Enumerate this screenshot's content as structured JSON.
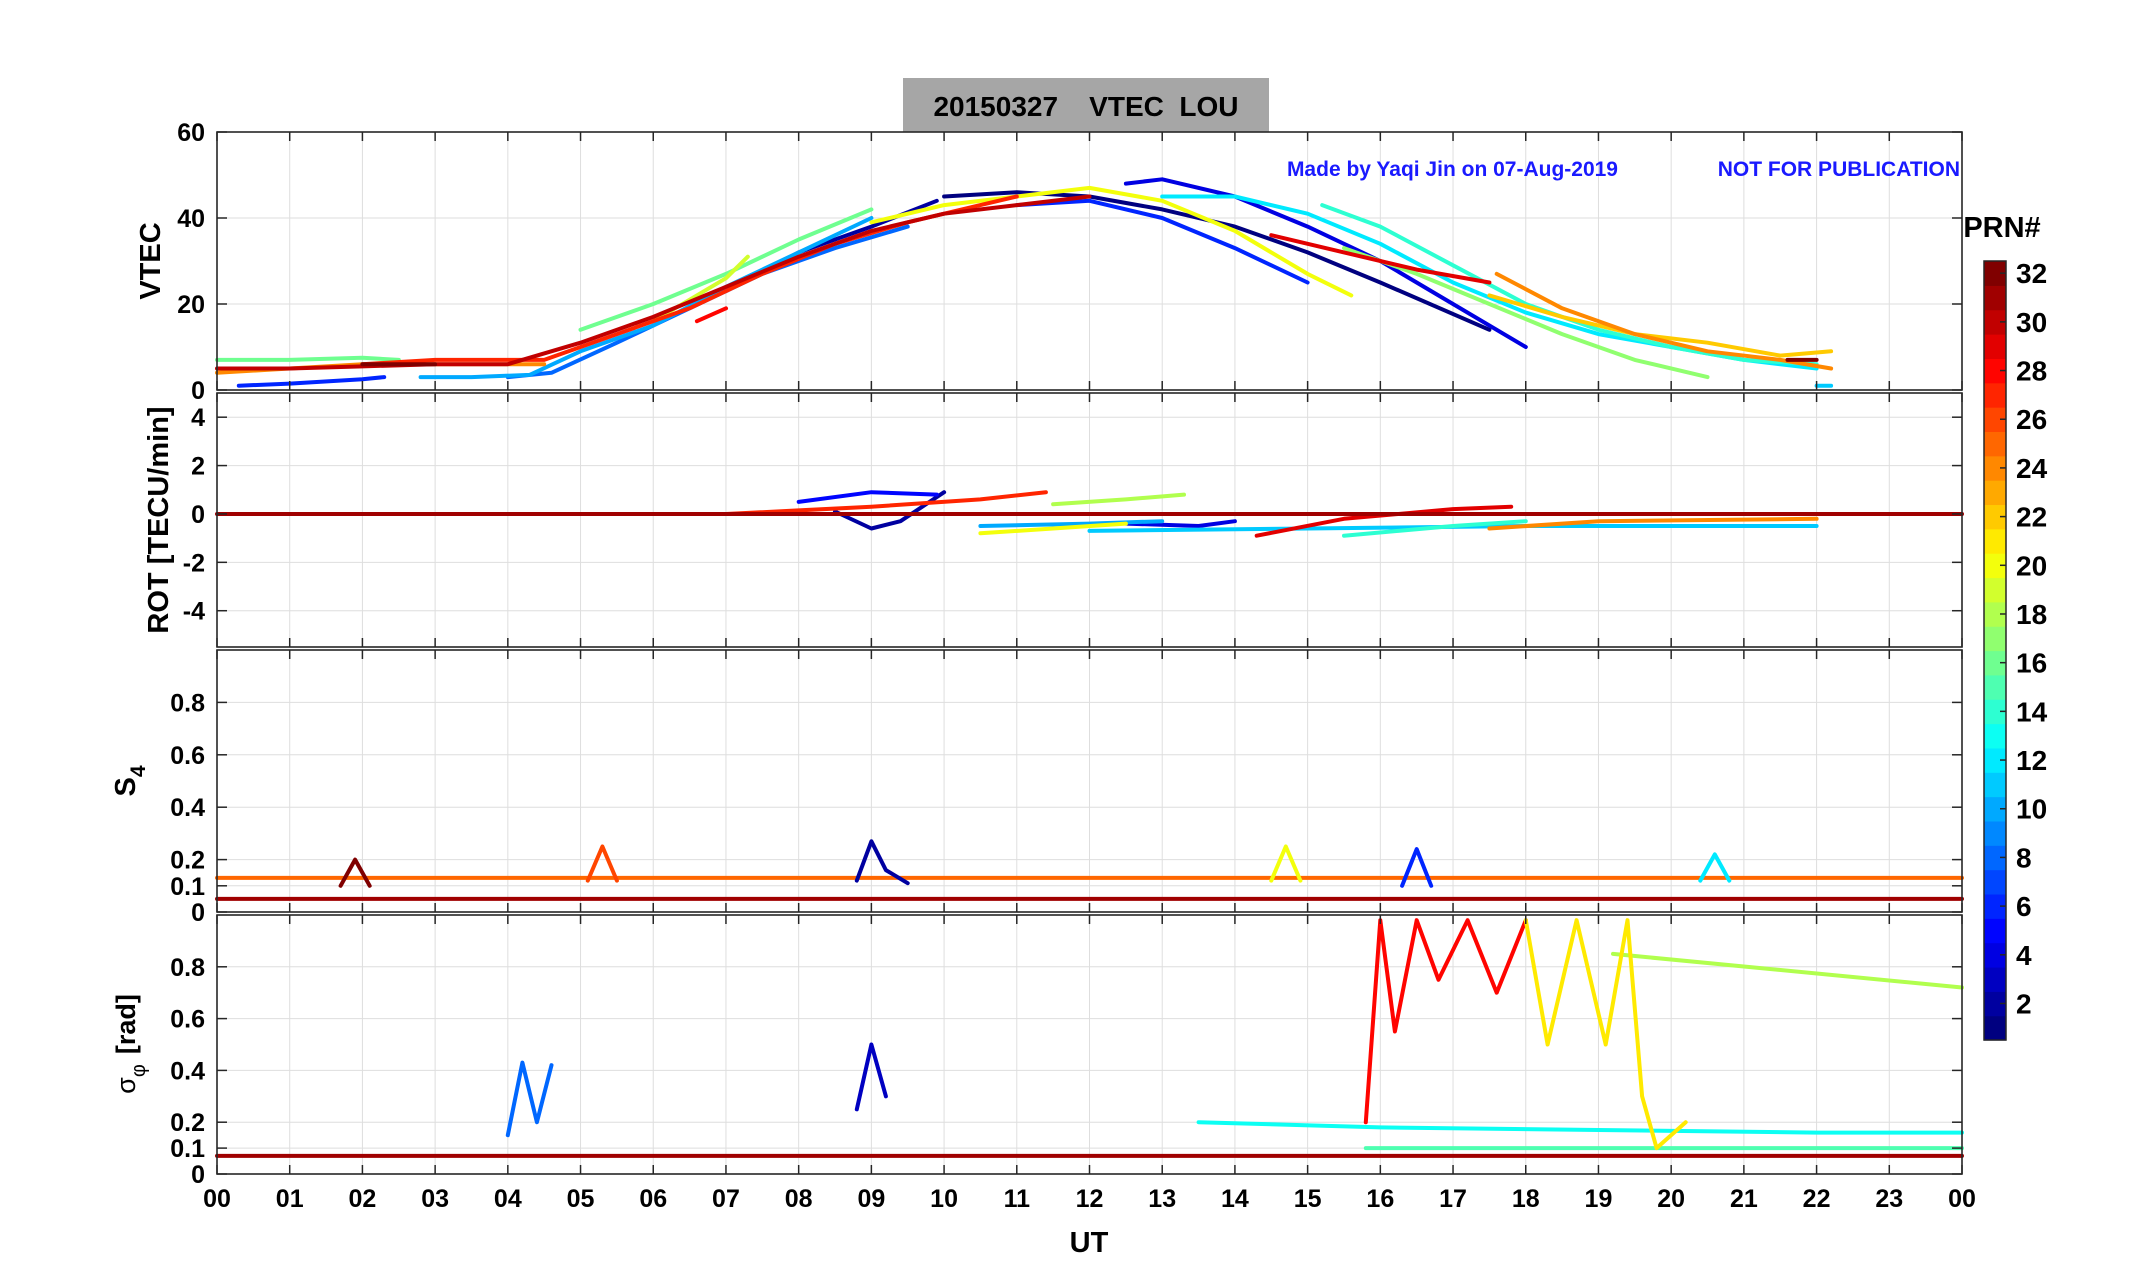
{
  "figure": {
    "title": "20150327    VTEC  LOU",
    "credit": "Made by Yaqi Jin on 07-Aug-2019",
    "notice": "NOT FOR PUBLICATION",
    "xlabel": "UT"
  },
  "colors": {
    "title_box": "#a6a6a6",
    "annotation": "#1a1aff",
    "grid": "#dedede",
    "axis": "#262626"
  },
  "colorbar": {
    "label": "PRN#",
    "range": [
      1,
      32
    ],
    "ticks": [
      "2",
      "4",
      "6",
      "8",
      "10",
      "12",
      "14",
      "16",
      "18",
      "20",
      "22",
      "24",
      "26",
      "28",
      "30",
      "32"
    ]
  },
  "chart_data": [
    {
      "id": "vtec",
      "type": "line",
      "ylabel": "VTEC",
      "xlim": [
        0,
        24
      ],
      "ylim": [
        0,
        60
      ],
      "yticks": [
        "0",
        "20",
        "40",
        "60"
      ],
      "xticks": [
        "00",
        "01",
        "02",
        "03",
        "04",
        "05",
        "06",
        "07",
        "08",
        "09",
        "10",
        "11",
        "12",
        "13",
        "14",
        "15",
        "16",
        "17",
        "18",
        "19",
        "20",
        "21",
        "22",
        "23",
        "00"
      ],
      "series": [
        {
          "prn": 1,
          "x": [
            10.0,
            11.0,
            12.0,
            13.0,
            14.0,
            15.0,
            16.0,
            17.5
          ],
          "y": [
            45,
            46,
            45,
            42,
            38,
            32,
            25,
            14
          ]
        },
        {
          "prn": 2,
          "x": [
            7.0,
            8.0,
            9.0,
            9.9
          ],
          "y": [
            23,
            32,
            38,
            44
          ]
        },
        {
          "prn": 4,
          "x": [
            12.5,
            13.0,
            14.0,
            15.0,
            16.0,
            17.0,
            18.0
          ],
          "y": [
            48,
            49,
            45,
            38,
            30,
            20,
            10
          ]
        },
        {
          "prn": 6,
          "x": [
            0.3,
            1.0,
            2.0,
            2.3
          ],
          "y": [
            1,
            1.5,
            2.5,
            3
          ]
        },
        {
          "prn": 6,
          "x": [
            11.0,
            12.0,
            13.0,
            14.0,
            15.0
          ],
          "y": [
            43,
            44,
            40,
            33,
            25
          ]
        },
        {
          "prn": 8,
          "x": [
            4.0,
            4.6,
            5.5,
            6.5,
            7.5,
            8.5,
            9.5
          ],
          "y": [
            3,
            4,
            11,
            19,
            27,
            33,
            38
          ]
        },
        {
          "prn": 10,
          "x": [
            2.8,
            3.5,
            4.3,
            5.0,
            6.0,
            7.0,
            8.0,
            9.0
          ],
          "y": [
            3,
            3,
            3.5,
            9,
            15,
            24,
            32,
            40
          ]
        },
        {
          "prn": 11,
          "x": [
            22.0,
            22.2
          ],
          "y": [
            1,
            1
          ]
        },
        {
          "prn": 12,
          "x": [
            13.0,
            14.0,
            15.0,
            16.0,
            17.0,
            18.0,
            19.0,
            20.0,
            21.0,
            22.0
          ],
          "y": [
            45,
            45,
            41,
            34,
            25,
            18,
            13,
            10,
            7,
            5
          ]
        },
        {
          "prn": 14,
          "x": [
            15.2,
            16.0,
            17.0,
            18.0,
            19.0,
            20.0,
            21.0,
            22.0
          ],
          "y": [
            43,
            38,
            29,
            20,
            14,
            10,
            7,
            6
          ]
        },
        {
          "prn": 16,
          "x": [
            0.0,
            1.0,
            2.0,
            2.5
          ],
          "y": [
            7,
            7,
            7.5,
            7
          ]
        },
        {
          "prn": 16,
          "x": [
            5.0,
            6.0,
            7.0,
            8.0,
            9.0
          ],
          "y": [
            14,
            20,
            27,
            35,
            42
          ]
        },
        {
          "prn": 17,
          "x": [
            15.5,
            16.5,
            17.5,
            18.5,
            19.5,
            20.5
          ],
          "y": [
            33,
            27,
            20,
            13,
            7,
            3
          ]
        },
        {
          "prn": 19,
          "x": [
            6.0,
            7.0,
            7.3
          ],
          "y": [
            16,
            26,
            31
          ]
        },
        {
          "prn": 20,
          "x": [
            9.0,
            10.0,
            11.0,
            12.0,
            13.0,
            14.0,
            15.0,
            15.6
          ],
          "y": [
            39,
            43,
            45,
            47,
            44,
            37,
            27,
            22
          ]
        },
        {
          "prn": 22,
          "x": [
            17.5,
            18.5,
            19.5,
            20.5,
            21.5,
            22.2
          ],
          "y": [
            22,
            17,
            13,
            11,
            8,
            9
          ]
        },
        {
          "prn": 24,
          "x": [
            0.0,
            1.0,
            2.0,
            3.0,
            4.0,
            4.5
          ],
          "y": [
            4,
            5,
            6,
            6,
            6,
            6
          ]
        },
        {
          "prn": 24,
          "x": [
            17.6,
            18.5,
            19.5,
            20.5,
            21.5,
            22.2
          ],
          "y": [
            27,
            19,
            13,
            9,
            7,
            5
          ]
        },
        {
          "prn": 27,
          "x": [
            2.0,
            3.0,
            4.0,
            4.5,
            5.5,
            6.5,
            7.5,
            8.5,
            9.5,
            10.5,
            11.0
          ],
          "y": [
            6,
            7,
            7,
            7,
            13,
            19,
            27,
            34,
            39,
            43,
            45
          ]
        },
        {
          "prn": 28,
          "x": [
            6.6,
            7.0
          ],
          "y": [
            16,
            19
          ]
        },
        {
          "prn": 29,
          "x": [
            14.5,
            15.5,
            16.5,
            17.5
          ],
          "y": [
            36,
            32,
            28,
            25
          ]
        },
        {
          "prn": 30,
          "x": [
            0.0,
            1.0,
            2.0,
            3.0,
            4.0,
            5.0,
            6.0,
            7.0,
            8.0,
            9.0,
            10.0,
            11.0,
            12.0
          ],
          "y": [
            5,
            5,
            5.5,
            6,
            6,
            11,
            17,
            24,
            31,
            37,
            41,
            43,
            45
          ]
        },
        {
          "prn": 32,
          "x": [
            2.0,
            3.0
          ],
          "y": [
            6,
            6
          ]
        },
        {
          "prn": 32,
          "x": [
            21.6,
            22.0
          ],
          "y": [
            7,
            7
          ]
        }
      ]
    },
    {
      "id": "rot",
      "type": "line",
      "ylabel": "ROT [TECU/min]",
      "xlim": [
        0,
        24
      ],
      "ylim": [
        -5.5,
        5
      ],
      "yticks": [
        "-4",
        "-2",
        "0",
        "2",
        "4"
      ],
      "series": [
        {
          "prn": 2,
          "x": [
            8.5,
            9.0,
            9.4,
            10.0
          ],
          "y": [
            0.1,
            -0.6,
            -0.3,
            0.9
          ]
        },
        {
          "prn": 5,
          "x": [
            8.0,
            9.0,
            9.9
          ],
          "y": [
            0.5,
            0.9,
            0.8
          ]
        },
        {
          "prn": 4,
          "x": [
            12.5,
            13.5,
            14.0
          ],
          "y": [
            -0.4,
            -0.5,
            -0.3
          ]
        },
        {
          "prn": 10,
          "x": [
            10.5,
            12.0,
            13.0
          ],
          "y": [
            -0.5,
            -0.4,
            -0.3
          ]
        },
        {
          "prn": 11,
          "x": [
            12.0,
            15.0,
            18.0,
            22.0
          ],
          "y": [
            -0.7,
            -0.6,
            -0.5,
            -0.5
          ]
        },
        {
          "prn": 14,
          "x": [
            15.5,
            17.0,
            18.0
          ],
          "y": [
            -0.9,
            -0.5,
            -0.3
          ]
        },
        {
          "prn": 18,
          "x": [
            11.5,
            12.5,
            13.3
          ],
          "y": [
            0.4,
            0.6,
            0.8
          ]
        },
        {
          "prn": 20,
          "x": [
            10.5,
            11.5,
            12.5
          ],
          "y": [
            -0.8,
            -0.6,
            -0.4
          ]
        },
        {
          "prn": 24,
          "x": [
            17.5,
            19.0,
            22.0
          ],
          "y": [
            -0.6,
            -0.3,
            -0.2
          ]
        },
        {
          "prn": 27,
          "x": [
            7.0,
            9.0,
            10.5,
            11.4
          ],
          "y": [
            0.0,
            0.3,
            0.6,
            0.9
          ]
        },
        {
          "prn": 29,
          "x": [
            14.3,
            15.5,
            17.0,
            17.8
          ],
          "y": [
            -0.9,
            -0.2,
            0.2,
            0.3
          ]
        },
        {
          "prn": 31,
          "x": [
            0.0,
            24.0
          ],
          "y": [
            0.0,
            0.0
          ]
        }
      ]
    },
    {
      "id": "s4",
      "type": "line",
      "ylabel": "S",
      "ylabel_sub": "4",
      "xlim": [
        0,
        24
      ],
      "ylim": [
        0,
        1
      ],
      "yticks": [
        "0",
        "0.1",
        "0.2",
        "0.4",
        "0.6",
        "0.8"
      ],
      "series": [
        {
          "prn": 31,
          "x": [
            0.0,
            24.0
          ],
          "y": [
            0.05,
            0.05
          ]
        },
        {
          "prn": 25,
          "x": [
            0.0,
            24.0
          ],
          "y": [
            0.13,
            0.13
          ]
        },
        {
          "prn": 2,
          "x": [
            8.8,
            9.0,
            9.2,
            9.5
          ],
          "y": [
            0.12,
            0.27,
            0.16,
            0.11
          ]
        },
        {
          "prn": 26,
          "x": [
            5.1,
            5.3,
            5.5
          ],
          "y": [
            0.12,
            0.25,
            0.12
          ]
        },
        {
          "prn": 6,
          "x": [
            16.3,
            16.5,
            16.7
          ],
          "y": [
            0.1,
            0.24,
            0.1
          ]
        },
        {
          "prn": 20,
          "x": [
            14.5,
            14.7,
            14.9
          ],
          "y": [
            0.12,
            0.25,
            0.12
          ]
        },
        {
          "prn": 12,
          "x": [
            20.4,
            20.6,
            20.8
          ],
          "y": [
            0.12,
            0.22,
            0.12
          ]
        },
        {
          "prn": 32,
          "x": [
            1.7,
            1.9,
            2.1
          ],
          "y": [
            0.1,
            0.2,
            0.1
          ]
        }
      ]
    },
    {
      "id": "sigma_phi",
      "type": "line",
      "ylabel": "σ",
      "ylabel_sub": "φ",
      "ylabel_unit": "[rad]",
      "xlim": [
        0,
        24
      ],
      "ylim": [
        0,
        1
      ],
      "yticks": [
        "0",
        "0.1",
        "0.2",
        "0.4",
        "0.6",
        "0.8"
      ],
      "series": [
        {
          "prn": 31,
          "x": [
            0.0,
            24.0
          ],
          "y": [
            0.07,
            0.07
          ]
        },
        {
          "prn": 13,
          "x": [
            13.5,
            16.0,
            19.0,
            22.0,
            24.0
          ],
          "y": [
            0.2,
            0.18,
            0.17,
            0.16,
            0.16
          ]
        },
        {
          "prn": 15,
          "x": [
            15.8,
            24.0
          ],
          "y": [
            0.1,
            0.1
          ]
        },
        {
          "prn": 18,
          "x": [
            19.2,
            24.0
          ],
          "y": [
            0.85,
            0.72
          ]
        },
        {
          "prn": 8,
          "x": [
            4.0,
            4.2,
            4.4,
            4.6
          ],
          "y": [
            0.15,
            0.43,
            0.2,
            0.42
          ]
        },
        {
          "prn": 3,
          "x": [
            8.8,
            9.0,
            9.2
          ],
          "y": [
            0.25,
            0.5,
            0.3
          ]
        },
        {
          "prn": 28,
          "x": [
            15.8,
            16.0,
            16.2,
            16.5,
            16.8,
            17.2,
            17.6,
            18.0
          ],
          "y": [
            0.2,
            0.98,
            0.55,
            0.98,
            0.75,
            0.98,
            0.7,
            0.98
          ]
        },
        {
          "prn": 21,
          "x": [
            18.0,
            18.3,
            18.7,
            19.1,
            19.4,
            19.6,
            19.8,
            20.2
          ],
          "y": [
            0.98,
            0.5,
            0.98,
            0.5,
            0.98,
            0.3,
            0.1,
            0.2
          ]
        }
      ]
    }
  ]
}
